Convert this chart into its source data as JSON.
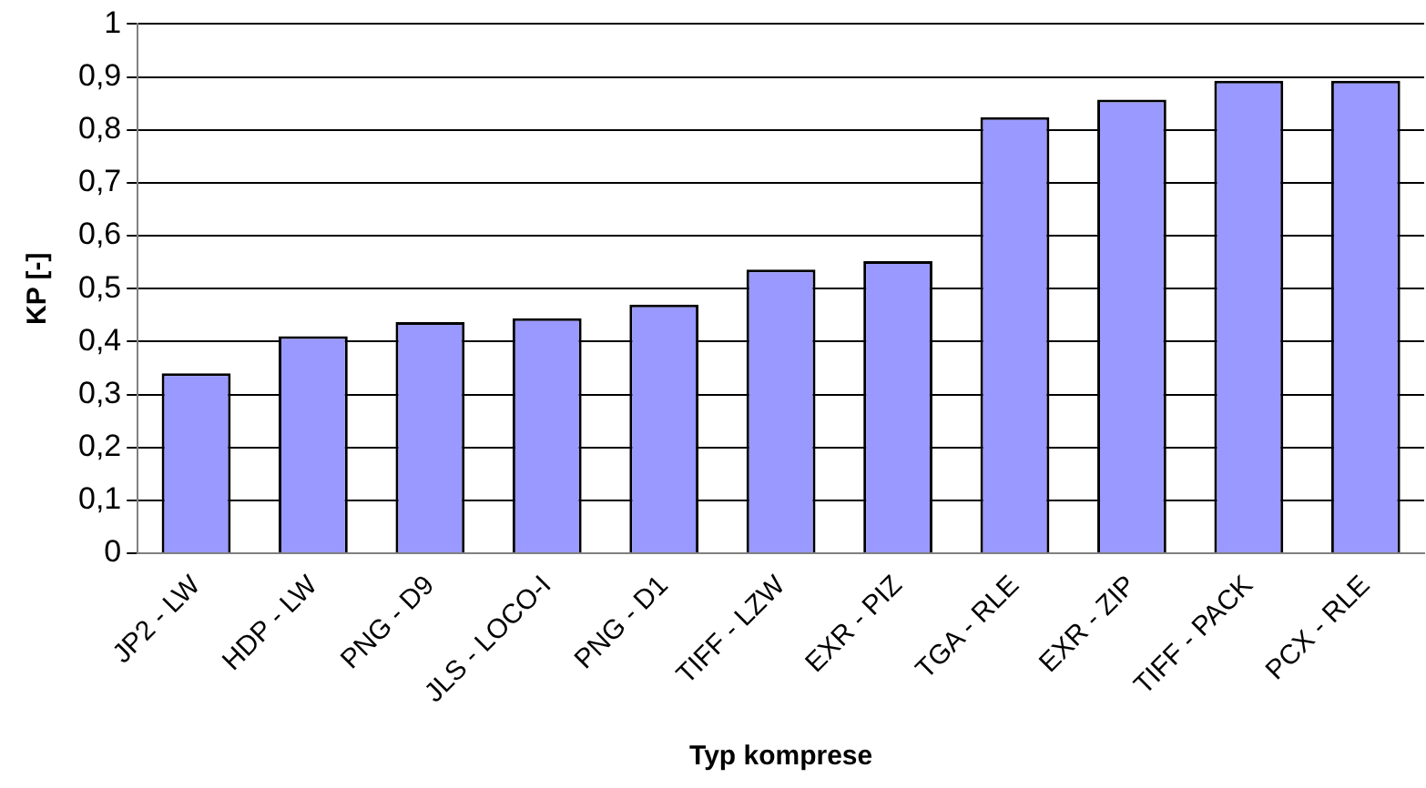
{
  "chart_data": {
    "type": "bar",
    "xlabel": "Typ komprese",
    "ylabel": "KP [-]",
    "categories": [
      "JP2 - LW",
      "HDP - LW",
      "PNG - D9",
      "JLS - LOCO-I",
      "PNG - D1",
      "TIFF - LZW",
      "EXR - PIZ",
      "TGA - RLE",
      "EXR - ZIP",
      "TIFF - PACK",
      "PCX - RLE"
    ],
    "values": [
      0.34,
      0.41,
      0.437,
      0.444,
      0.47,
      0.536,
      0.552,
      0.824,
      0.857,
      0.893,
      0.893
    ],
    "color": "#9999ff",
    "ylim": [
      0,
      1
    ],
    "yticks": [
      0,
      {
        "value": 0.1,
        "label": "0,1"
      },
      {
        "value": 0.2,
        "label": "0,2"
      },
      {
        "value": 0.3,
        "label": "0,3"
      },
      {
        "value": 0.4,
        "label": "0,4"
      },
      {
        "value": 0.5,
        "label": "0,5"
      },
      {
        "value": 0.6,
        "label": "0,6"
      },
      {
        "value": 0.7,
        "label": "0,7"
      },
      {
        "value": 0.8,
        "label": "0,8"
      },
      {
        "value": 0.9,
        "label": "0,9"
      },
      1
    ],
    "grid": "y",
    "legend": false
  }
}
